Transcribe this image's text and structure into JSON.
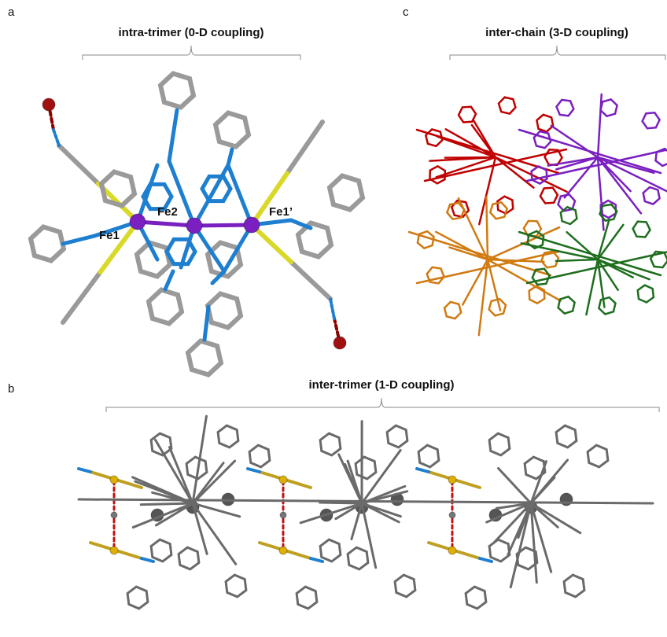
{
  "panels": {
    "a": {
      "letter": "a",
      "title": "intra-trimer (0-D coupling)",
      "atoms": [
        "Fe1",
        "Fe2",
        "Fe1’"
      ]
    },
    "c": {
      "letter": "c",
      "title": "inter-chain (3-D coupling)"
    },
    "b": {
      "letter": "b",
      "title": "inter-trimer (1-D coupling)"
    }
  }
}
